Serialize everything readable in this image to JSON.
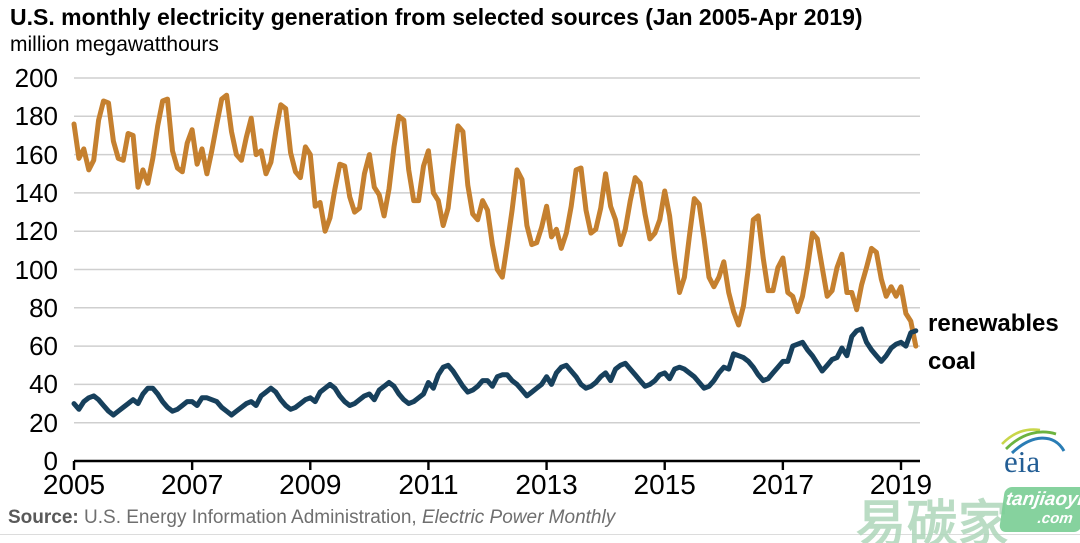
{
  "title": "U.S. monthly electricity generation from selected sources (Jan 2005-Apr 2019)",
  "subtitle": "million megawatthours",
  "source": {
    "label": "Source:",
    "agency": " U.S. Energy Information Administration, ",
    "publication": "Electric Power Monthly"
  },
  "logo": {
    "text": "eia"
  },
  "watermark": {
    "characters": "易碳家",
    "badge_line1": "tanjiaoyi",
    "badge_line2": ".com"
  },
  "chart_data": {
    "type": "line",
    "title": "U.S. monthly electricity generation from selected sources (Jan 2005-Apr 2019)",
    "ylabel": "million megawatthours",
    "x_start": "2005-01",
    "x_end": "2019-04",
    "months_total": 172,
    "ylim": [
      0,
      200
    ],
    "y_ticks": [
      0,
      20,
      40,
      60,
      80,
      100,
      120,
      140,
      160,
      180,
      200
    ],
    "x_tick_labels": [
      "2005",
      "2007",
      "2009",
      "2011",
      "2013",
      "2015",
      "2017",
      "2019"
    ],
    "grid": "horizontal",
    "legend_position": "right-of-plot",
    "legend": [
      {
        "label": "renewables",
        "color": "#1b3e5f"
      },
      {
        "label": "coal",
        "color": "#c07a2c"
      }
    ],
    "series": [
      {
        "name": "coal",
        "color": "#c5802f",
        "values": [
          176,
          158,
          163,
          152,
          157,
          178,
          188,
          187,
          167,
          158,
          157,
          171,
          170,
          143,
          152,
          145,
          158,
          175,
          188,
          189,
          162,
          153,
          151,
          166,
          173,
          155,
          163,
          150,
          162,
          176,
          189,
          191,
          172,
          160,
          157,
          169,
          179,
          160,
          162,
          150,
          156,
          172,
          186,
          184,
          161,
          151,
          148,
          164,
          160,
          133,
          135,
          120,
          127,
          142,
          155,
          154,
          138,
          130,
          132,
          150,
          160,
          143,
          139,
          128,
          142,
          164,
          180,
          178,
          152,
          136,
          136,
          154,
          162,
          140,
          136,
          123,
          132,
          154,
          175,
          172,
          144,
          129,
          126,
          136,
          131,
          113,
          100,
          96,
          113,
          131,
          152,
          147,
          123,
          113,
          114,
          122,
          133,
          117,
          121,
          111,
          119,
          133,
          152,
          153,
          131,
          119,
          121,
          132,
          150,
          133,
          126,
          113,
          121,
          136,
          148,
          145,
          129,
          116,
          119,
          126,
          141,
          128,
          106,
          88,
          96,
          117,
          137,
          134,
          116,
          96,
          91,
          96,
          104,
          88,
          78,
          71,
          81,
          101,
          126,
          128,
          106,
          89,
          89,
          101,
          106,
          88,
          86,
          78,
          86,
          101,
          119,
          116,
          101,
          86,
          89,
          101,
          108,
          88,
          88,
          79,
          92,
          101,
          111,
          109,
          95,
          86,
          91,
          86,
          91,
          77,
          73,
          60
        ]
      },
      {
        "name": "renewables",
        "color": "#17405c",
        "values": [
          30,
          27,
          31,
          33,
          34,
          32,
          29,
          26,
          24,
          26,
          28,
          30,
          32,
          30,
          35,
          38,
          38,
          35,
          31,
          28,
          26,
          27,
          29,
          31,
          31,
          29,
          33,
          33,
          32,
          31,
          28,
          26,
          24,
          26,
          28,
          30,
          31,
          29,
          34,
          36,
          38,
          36,
          32,
          29,
          27,
          28,
          30,
          32,
          33,
          31,
          36,
          38,
          40,
          38,
          34,
          31,
          29,
          30,
          32,
          34,
          35,
          32,
          37,
          39,
          41,
          39,
          35,
          32,
          30,
          31,
          33,
          35,
          41,
          38,
          45,
          49,
          50,
          47,
          43,
          39,
          36,
          37,
          39,
          42,
          42,
          39,
          44,
          45,
          45,
          42,
          40,
          37,
          34,
          36,
          38,
          40,
          44,
          40,
          46,
          49,
          50,
          47,
          44,
          40,
          38,
          39,
          41,
          44,
          46,
          42,
          48,
          50,
          51,
          48,
          45,
          42,
          39,
          40,
          42,
          45,
          46,
          43,
          48,
          49,
          48,
          46,
          44,
          41,
          38,
          39,
          42,
          46,
          49,
          48,
          56,
          55,
          54,
          52,
          49,
          45,
          42,
          43,
          46,
          49,
          52,
          52,
          60,
          61,
          62,
          58,
          55,
          51,
          47,
          50,
          53,
          54,
          59,
          55,
          65,
          68,
          69,
          62,
          58,
          55,
          52,
          55,
          59,
          61,
          62,
          60,
          67,
          68
        ]
      }
    ]
  }
}
